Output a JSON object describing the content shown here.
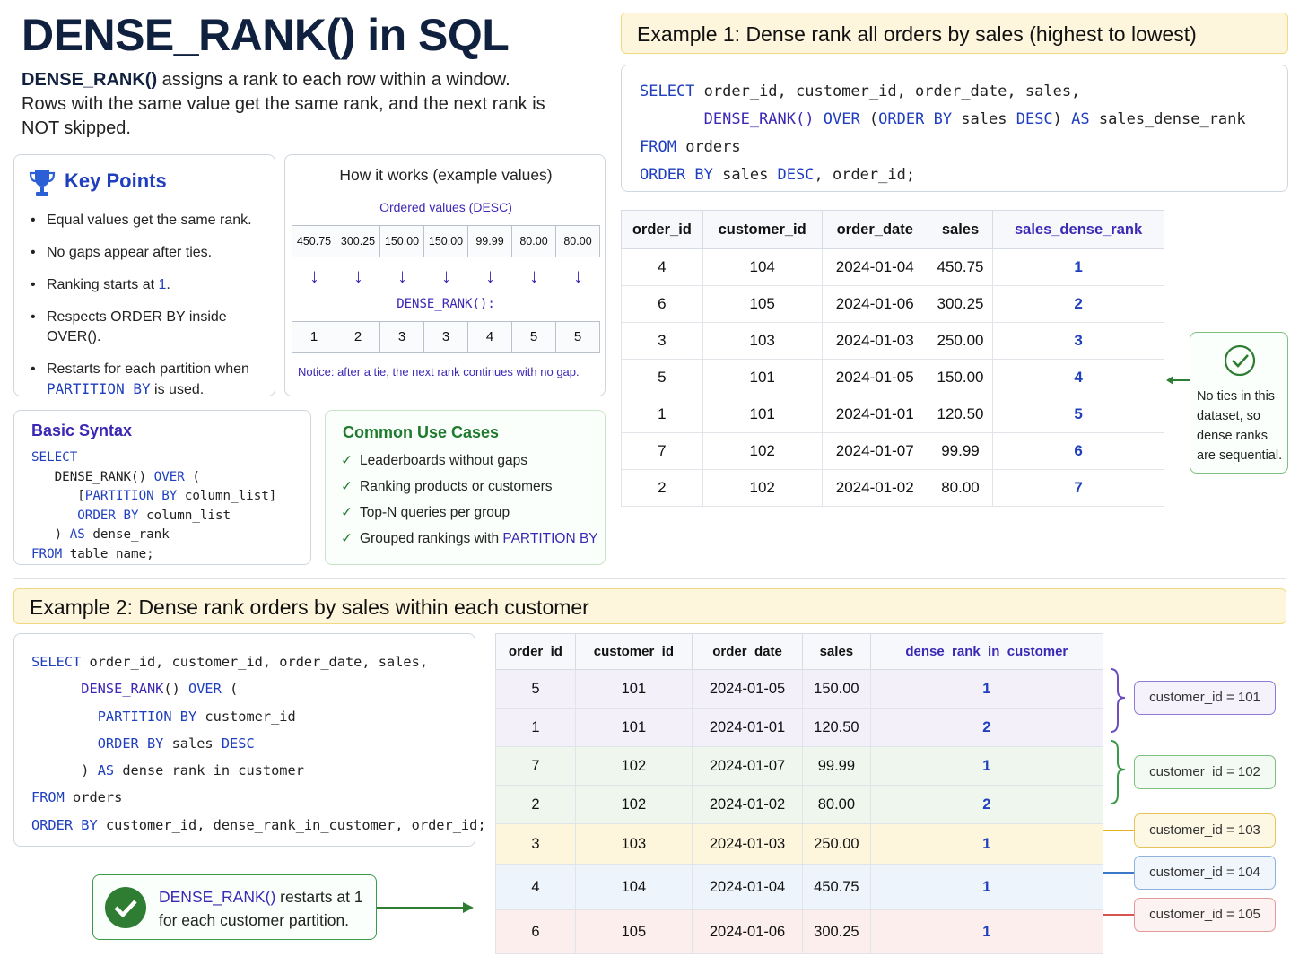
{
  "title": "DENSE_RANK() in SQL",
  "intro": {
    "func": "DENSE_RANK()",
    "rest": " assigns a rank to each row within a window. Rows with the same value get the same rank, and the next rank is NOT skipped."
  },
  "key_points": {
    "title": "Key Points",
    "items": [
      "Equal values get the same rank.",
      "No gaps appear after ties.",
      "Ranking starts at",
      "Respects ORDER BY inside OVER().",
      "Restarts for each partition when"
    ],
    "rank_start": "1",
    "partition_kw": "PARTITION BY",
    "partition_suffix": "is used."
  },
  "how": {
    "title": "How it works (example values)",
    "ordered_label": "Ordered values (DESC)",
    "values": [
      "450.75",
      "300.25",
      "150.00",
      "150.00",
      "99.99",
      "80.00",
      "80.00"
    ],
    "rank_label": "DENSE_RANK():",
    "ranks": [
      "1",
      "2",
      "3",
      "3",
      "4",
      "5",
      "5"
    ],
    "notice": "Notice:  after a tie, the next rank continues with no gap."
  },
  "basic_syntax": {
    "title": "Basic Syntax"
  },
  "use_cases": {
    "title": "Common Use Cases",
    "items": [
      "Leaderboards without gaps",
      "Ranking products or customers",
      "Top-N queries per group",
      "Grouped rankings with"
    ],
    "partition_kw": "PARTITION BY"
  },
  "example1": {
    "title": "Example 1: Dense rank all orders by sales (highest to lowest)",
    "columns": [
      "order_id",
      "customer_id",
      "order_date",
      "sales",
      "sales_dense_rank"
    ],
    "rows": [
      [
        "4",
        "104",
        "2024-01-04",
        "450.75",
        "1"
      ],
      [
        "6",
        "105",
        "2024-01-06",
        "300.25",
        "2"
      ],
      [
        "3",
        "103",
        "2024-01-03",
        "250.00",
        "3"
      ],
      [
        "5",
        "101",
        "2024-01-05",
        "150.00",
        "4"
      ],
      [
        "1",
        "101",
        "2024-01-01",
        "120.50",
        "5"
      ],
      [
        "7",
        "102",
        "2024-01-07",
        "99.99",
        "6"
      ],
      [
        "2",
        "102",
        "2024-01-02",
        "80.00",
        "7"
      ]
    ],
    "note": "No ties in this dataset, so dense ranks are sequential."
  },
  "example2": {
    "title": "Example 2: Dense rank orders by sales within each customer",
    "columns": [
      "order_id",
      "customer_id",
      "order_date",
      "sales",
      "dense_rank_in_customer"
    ],
    "groups": [
      {
        "tag": "customer_id  =  101",
        "color": "#6b4fc0",
        "rows": [
          [
            "5",
            "101",
            "2024-01-05",
            "150.00",
            "1"
          ],
          [
            "1",
            "101",
            "2024-01-01",
            "120.50",
            "2"
          ]
        ]
      },
      {
        "tag": "customer_id  =  102",
        "color": "#3a9a4a",
        "rows": [
          [
            "7",
            "102",
            "2024-01-07",
            "99.99",
            "1"
          ],
          [
            "2",
            "102",
            "2024-01-02",
            "80.00",
            "2"
          ]
        ]
      },
      {
        "tag": "customer_id  =  103",
        "color": "#e6b422",
        "rows": [
          [
            "3",
            "103",
            "2024-01-03",
            "250.00",
            "1"
          ]
        ]
      },
      {
        "tag": "customer_id  =  104",
        "color": "#3b78c9",
        "rows": [
          [
            "4",
            "104",
            "2024-01-04",
            "450.75",
            "1"
          ]
        ]
      },
      {
        "tag": "customer_id  =  105",
        "color": "#d9534f",
        "rows": [
          [
            "6",
            "105",
            "2024-01-06",
            "300.25",
            "1"
          ]
        ]
      }
    ],
    "restart_func": "DENSE_RANK()",
    "restart_rest1": " restarts at 1",
    "restart_rest2": "for each customer partition."
  },
  "colors": {
    "accent": "#1f3fbf",
    "purple": "#3b28b5",
    "green": "#1e7a2e"
  }
}
